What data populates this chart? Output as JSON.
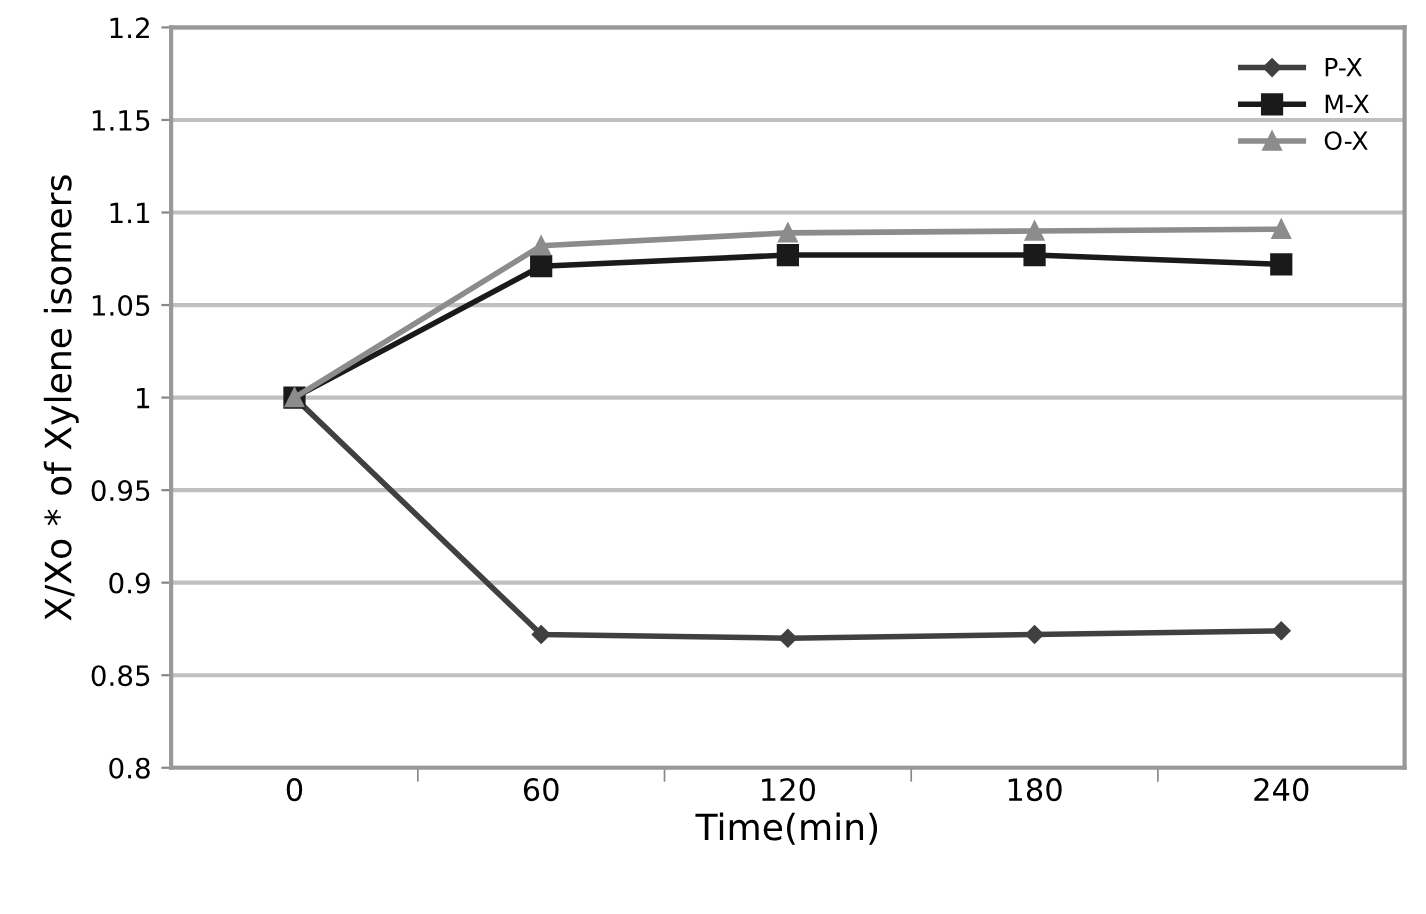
{
  "chart_data": {
    "type": "line",
    "xlabel": "Time(min)",
    "ylabel": "X/Xo * of Xylene isomers",
    "categories": [
      "0",
      "60",
      "120",
      "180",
      "240"
    ],
    "series": [
      {
        "name": "P-X",
        "color": "#404040",
        "marker": "diamond",
        "values": [
          1,
          0.872,
          0.87,
          0.872,
          0.874
        ]
      },
      {
        "name": "M-X",
        "color": "#1a1a1a",
        "marker": "square",
        "values": [
          1,
          1.071,
          1.077,
          1.077,
          1.072
        ]
      },
      {
        "name": "O-X",
        "color": "#8c8c8c",
        "marker": "triangle",
        "values": [
          1,
          1.082,
          1.089,
          1.09,
          1.091
        ]
      }
    ],
    "ylim": [
      0.8,
      1.2
    ],
    "yticks": [
      {
        "value": 0.8,
        "label": "0.8"
      },
      0.85,
      {
        "value": 0.9,
        "label": "0.9"
      },
      0.95,
      1,
      1.05,
      {
        "value": 1.1,
        "label": "1.1"
      },
      1.15,
      {
        "value": 1.2,
        "label": "1.2"
      }
    ],
    "grid": "y",
    "legend": "top right",
    "line_style": "solid"
  }
}
